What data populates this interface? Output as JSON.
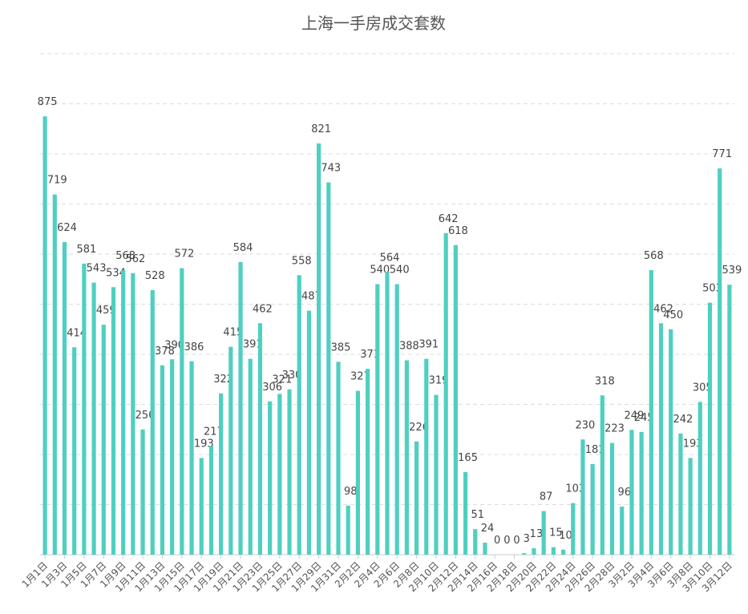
{
  "chart_data": {
    "type": "bar",
    "title": "上海一手房成交套数",
    "categories": [
      "1月1日",
      null,
      "1月3日",
      null,
      "1月5日",
      null,
      "1月7日",
      null,
      "1月9日",
      null,
      "1月11日",
      null,
      "1月13日",
      null,
      "1月15日",
      null,
      "1月17日",
      null,
      "1月19日",
      null,
      "1月21日",
      null,
      "1月23日",
      null,
      "1月25日",
      null,
      "1月27日",
      null,
      "1月29日",
      null,
      "1月31日",
      null,
      "2月2日",
      null,
      "2月4日",
      null,
      "2月6日",
      null,
      "2月8日",
      null,
      "2月10日",
      null,
      "2月12日",
      null,
      "2月14日",
      null,
      "2月16日",
      null,
      "2月18日",
      null,
      "2月20日",
      null,
      "2月22日",
      null,
      "2月24日",
      null,
      "2月26日",
      null,
      "2月28日",
      null,
      "3月2日",
      null,
      "3月4日",
      null,
      "3月6日",
      null,
      "3月8日",
      null,
      "3月10日",
      null,
      "3月12日"
    ],
    "values": [
      875,
      719,
      624,
      414,
      581,
      543,
      459,
      534,
      568,
      562,
      250,
      528,
      378,
      390,
      572,
      386,
      193,
      217,
      322,
      415,
      584,
      391,
      462,
      306,
      321,
      330,
      558,
      487,
      821,
      743,
      385,
      98,
      327,
      371,
      540,
      564,
      540,
      388,
      226,
      391,
      319,
      642,
      618,
      165,
      51,
      24,
      0,
      0,
      0,
      3,
      13,
      87,
      15,
      10,
      103,
      230,
      181,
      318,
      223,
      96,
      249,
      245,
      568,
      462,
      450,
      242,
      193,
      305,
      503,
      771,
      539
    ],
    "color": "#4fcfc1",
    "ylim": [
      0,
      1000
    ],
    "yticks": [
      0,
      100,
      200,
      300,
      400,
      500,
      600,
      700,
      800,
      900,
      1000
    ],
    "grid": true
  }
}
